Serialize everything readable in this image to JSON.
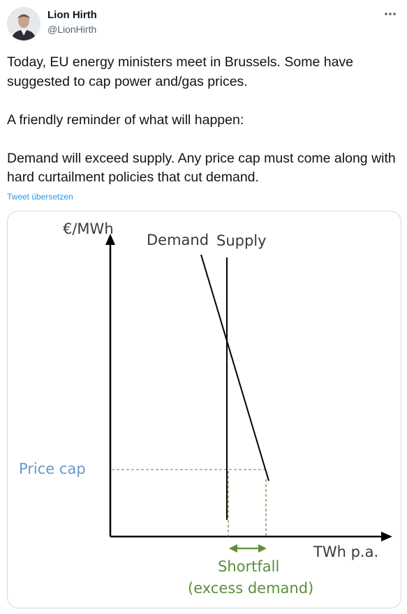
{
  "author": {
    "name": "Lion Hirth",
    "handle": "@LionHirth"
  },
  "icons": {
    "avatar": "profile-photo",
    "more": "more-options-icon"
  },
  "tweet": {
    "text": "Today, EU energy ministers meet in Brussels. Some have suggested to cap power and/gas prices.\n\nA friendly reminder of what will happen:\n\nDemand will exceed supply. Any price cap must come along with hard curtailment policies that cut demand.",
    "translate_label": "Tweet übersetzen"
  },
  "colors": {
    "link": "#1d9bf0",
    "price_cap": "#6d97cc",
    "shortfall": "#5b8f3a",
    "axis": "#000000"
  },
  "chart_data": {
    "type": "line",
    "ylabel": "€/MWh",
    "xlabel": "TWh p.a.",
    "series": [
      {
        "name": "Demand",
        "style": "downward-sloping line"
      },
      {
        "name": "Supply",
        "style": "vertical line"
      }
    ],
    "annotations": {
      "price_cap_label": "Price cap",
      "shortfall_label": "Shortfall",
      "shortfall_sub": "(excess demand)"
    },
    "grid": false
  }
}
